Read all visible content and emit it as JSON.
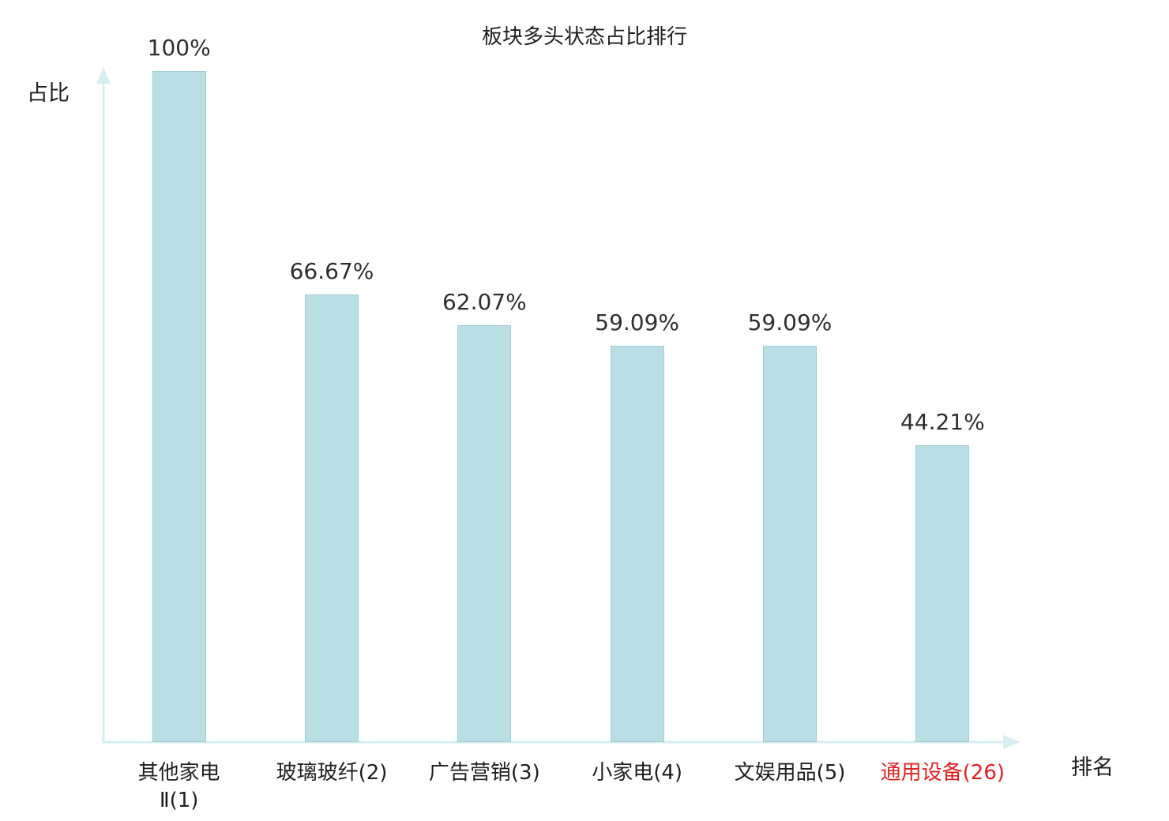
{
  "title": "板块多头状态占比排行",
  "y_axis_label": "占比",
  "x_axis_label": "排名",
  "colors": {
    "bar_fill": "#b9dfe5",
    "bar_border": "#a2ccd4",
    "axis": "#d7eef1",
    "text": "#2e2e2e",
    "highlight": "#e02020"
  },
  "chart_data": {
    "type": "bar",
    "title": "板块多头状态占比排行",
    "xlabel": "排名",
    "ylabel": "占比",
    "ylim": [
      0,
      100
    ],
    "grid": false,
    "legend": false,
    "categories": [
      "其他家电Ⅱ(1)",
      "玻璃玻纤(2)",
      "广告营销(3)",
      "小家电(4)",
      "文娱用品(5)",
      "通用设备(26)"
    ],
    "category_lines": [
      [
        "其他家电",
        "Ⅱ(1)"
      ],
      [
        "玻璃玻纤(2)"
      ],
      [
        "广告营销(3)"
      ],
      [
        "小家电(4)"
      ],
      [
        "文娱用品(5)"
      ],
      [
        "通用设备(26)"
      ]
    ],
    "values": [
      100,
      66.67,
      62.07,
      59.09,
      59.09,
      44.21
    ],
    "value_labels": [
      "100%",
      "66.67%",
      "62.07%",
      "59.09%",
      "59.09%",
      "44.21%"
    ],
    "highlight_index": 5
  }
}
